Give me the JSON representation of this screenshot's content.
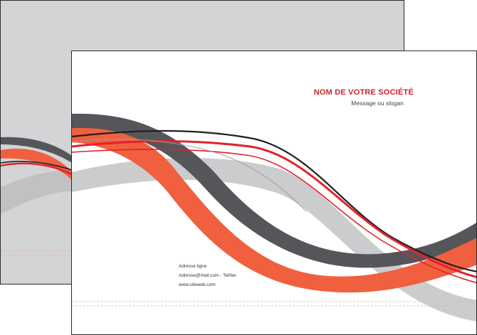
{
  "company": {
    "name": "NOM DE VOTRE SOCIÉTÉ",
    "slogan": "Message ou slogan"
  },
  "contact": {
    "address": "Adresse ligne",
    "email_phone": "Adresse@mail.com - Tel/fax",
    "website": "www.siteweb.com"
  },
  "colors": {
    "red": "#e2222b",
    "coral": "#f0603f",
    "dark_gray": "#55565a",
    "light_gray": "#c8c9cb",
    "black": "#231f20",
    "back_sheet": "#d3d4d6"
  }
}
